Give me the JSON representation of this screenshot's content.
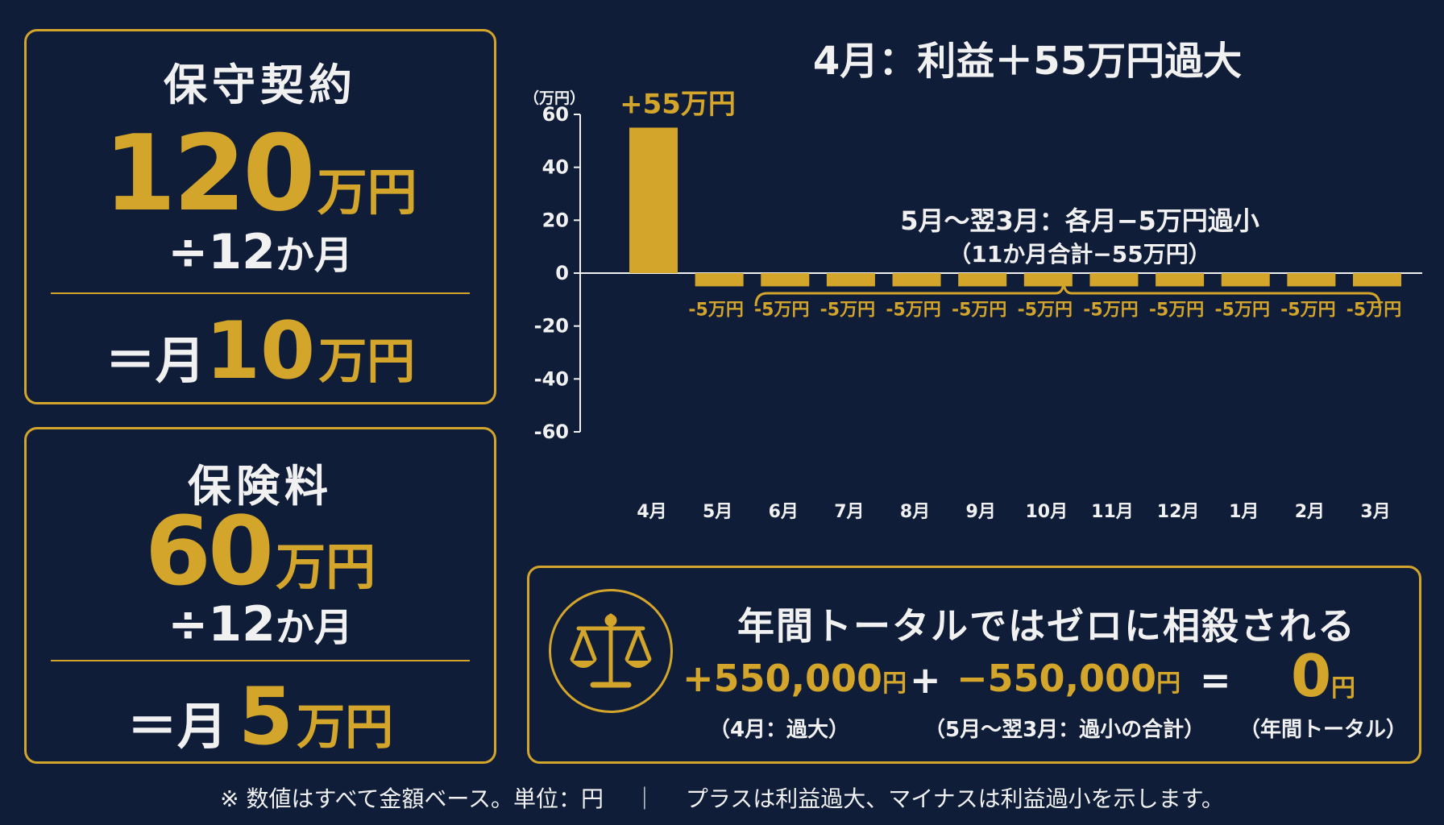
{
  "maintenance": {
    "title": "保守契約",
    "amount_number": "120",
    "amount_unit": "万円",
    "divide_symbol": "÷12",
    "divide_suffix": "か月",
    "result_prefix": "＝月",
    "result_number": "10",
    "result_unit": "万円"
  },
  "insurance": {
    "title": "保険料",
    "amount_number": "60",
    "amount_unit": "万円",
    "divide_symbol": "÷12",
    "divide_suffix": "か月",
    "result_prefix": "＝月",
    "result_number": "5",
    "result_unit": "万円"
  },
  "chart_data": {
    "type": "bar",
    "title": "4月：利益＋55万円過大",
    "ylabel": "（万円）",
    "ylim": [
      -60,
      60
    ],
    "yticks": [
      60,
      40,
      20,
      0,
      -20,
      -40,
      -60
    ],
    "categories": [
      "4月",
      "5月",
      "6月",
      "7月",
      "8月",
      "9月",
      "10月",
      "11月",
      "12月",
      "1月",
      "2月",
      "3月"
    ],
    "values": [
      55,
      -5,
      -5,
      -5,
      -5,
      -5,
      -5,
      -5,
      -5,
      -5,
      -5,
      -5
    ],
    "data_labels": [
      "+55万円",
      "-5万円",
      "-5万円",
      "-5万円",
      "-5万円",
      "-5万円",
      "-5万円",
      "-5万円",
      "-5万円",
      "-5万円",
      "-5万円",
      "-5万円"
    ],
    "annotation": {
      "line1": "5月〜翌3月：各月−5万円過小",
      "line2": "（11か月合計−55万円）"
    },
    "bar_color": "#d3a52b",
    "grid": false
  },
  "total": {
    "heading": "年間トータルではゼロに相殺される",
    "icon": "balance-scale-icon",
    "term1_number": "+550,000",
    "term1_unit": "円",
    "term1_label": "（4月：過大）",
    "operator_plus": "+",
    "term2_number": "−550,000",
    "term2_unit": "円",
    "term2_label": "（5月〜翌3月：過小の合計）",
    "operator_equals": "=",
    "result_number": "0",
    "result_unit": "円",
    "result_label": "（年間トータル）"
  },
  "footnote": "※ 数値はすべて金額ベース。単位：円　 ｜　 プラスは利益過大、マイナスは利益過小を示します。",
  "colors": {
    "background": "#0f1d38",
    "accent": "#d3a52b",
    "text": "#f3f3f3"
  }
}
